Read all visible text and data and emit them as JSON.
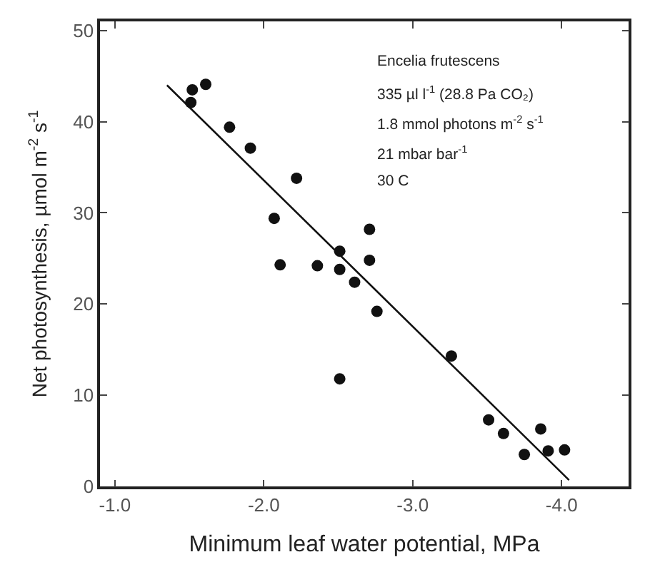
{
  "chart_data": {
    "type": "scatter",
    "xlabel": "Minimum leaf water potential, MPa",
    "ylabel": "Net photosynthesis, µmol m$^{-2}$ s$^{-1}$",
    "annotations": [
      "Encelia frutescens",
      "335 µl l$^{-1}$ (28.8 Pa CO₂)",
      "1.8 mmol photons m$^{-2}$ s$^{-1}$",
      "21 mbar bar$^{-1}$",
      "30 C"
    ],
    "series": [
      {
        "color": "#111111",
        "marker": "circle",
        "x": [
          -1.51,
          -1.52,
          -1.61,
          -1.77,
          -1.91,
          -2.22,
          -2.07,
          -2.71,
          -2.51,
          -2.11,
          -2.36,
          -2.51,
          -2.71,
          -2.61,
          -2.76,
          -2.51,
          -3.26,
          -3.51,
          -3.61,
          -3.75,
          -3.86,
          -3.91,
          -4.02
        ],
        "values": [
          42.1,
          43.5,
          44.1,
          39.4,
          37.1,
          33.8,
          29.4,
          28.2,
          25.8,
          24.3,
          24.2,
          23.8,
          24.8,
          22.4,
          19.2,
          11.8,
          14.3,
          7.3,
          5.8,
          3.5,
          6.3,
          3.9,
          4.0
        ]
      },
      {
        "type": "line",
        "color": "#111111",
        "line_style": "solid",
        "x": [
          -1.35,
          -4.05
        ],
        "values": [
          44.0,
          0.7
        ]
      }
    ],
    "xlim": [
      -0.9,
      -4.45
    ],
    "ylim": [
      0,
      51
    ],
    "xticks": [
      {
        "value": -1,
        "label": "-1.0"
      },
      {
        "value": -2,
        "label": "-2.0"
      },
      {
        "value": -3,
        "label": "-3.0"
      },
      {
        "value": -4,
        "label": "-4.0"
      }
    ],
    "yticks": [
      0,
      10,
      20,
      30,
      40,
      50
    ]
  }
}
